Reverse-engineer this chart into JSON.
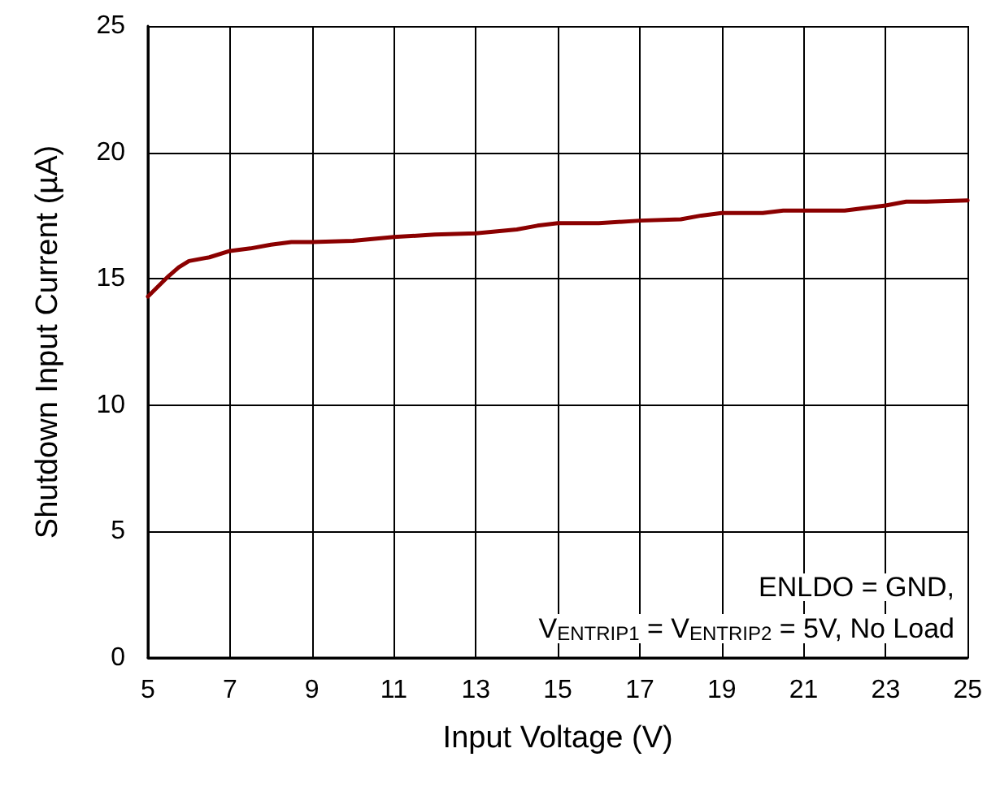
{
  "chart_data": {
    "type": "line",
    "xlabel": "Input Voltage (V)",
    "ylabel": "Shutdown Input Current (µA)",
    "x": [
      5,
      5.25,
      5.5,
      5.75,
      6,
      6.5,
      7,
      7.5,
      8,
      8.5,
      9,
      10,
      11,
      12,
      13,
      14,
      14.5,
      15,
      16,
      17,
      18,
      18.5,
      19,
      20,
      20.5,
      21,
      22,
      23,
      23.5,
      24,
      25
    ],
    "series": [
      {
        "color": "#8b0000",
        "values": [
          14.3,
          14.7,
          15.1,
          15.45,
          15.7,
          15.85,
          16.1,
          16.2,
          16.35,
          16.45,
          16.45,
          16.5,
          16.65,
          16.75,
          16.8,
          16.95,
          17.1,
          17.2,
          17.2,
          17.3,
          17.35,
          17.5,
          17.6,
          17.6,
          17.7,
          17.7,
          17.7,
          17.9,
          18.05,
          18.05,
          18.1
        ]
      }
    ],
    "xlim": [
      5,
      25
    ],
    "xticks": [
      5,
      7,
      9,
      11,
      13,
      15,
      17,
      19,
      21,
      23,
      25
    ],
    "ylim": [
      0,
      25
    ],
    "yticks": [
      0,
      5,
      10,
      15,
      20,
      25
    ],
    "grid": true,
    "marker": "none",
    "line_style": "solid",
    "annotations": [
      "ENLDO = GND,",
      "V$_{ENTRIP1}$ = V$_{ENTRIP2}$ = 5V, No Load"
    ]
  }
}
